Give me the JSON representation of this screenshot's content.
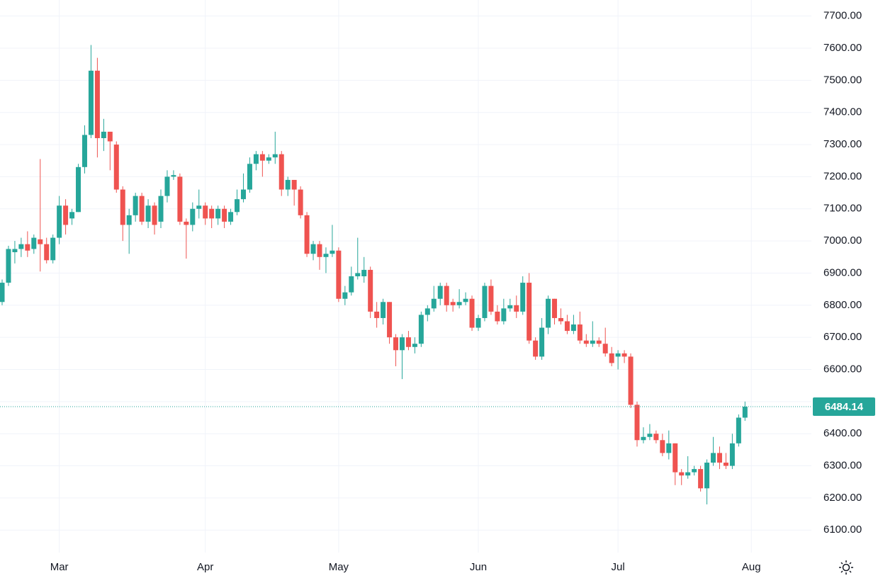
{
  "chart_data": {
    "type": "candlestick",
    "up_color": "#26a69a",
    "down_color": "#ef5350",
    "grid": true,
    "ylim": [
      6030,
      7750
    ],
    "yticks": [
      {
        "value": 6100,
        "label": "6100.00"
      },
      {
        "value": 6200,
        "label": "6200.00"
      },
      {
        "value": 6300,
        "label": "6300.00"
      },
      {
        "value": 6400,
        "label": "6400.00"
      },
      {
        "value": 6500,
        "label": "6500.00"
      },
      {
        "value": 6600,
        "label": "6600.00"
      },
      {
        "value": 6700,
        "label": "6700.00"
      },
      {
        "value": 6800,
        "label": "6800.00"
      },
      {
        "value": 6900,
        "label": "6900.00"
      },
      {
        "value": 7000,
        "label": "7000.00"
      },
      {
        "value": 7100,
        "label": "7100.00"
      },
      {
        "value": 7200,
        "label": "7200.00"
      },
      {
        "value": 7300,
        "label": "7300.00"
      },
      {
        "value": 7400,
        "label": "7400.00"
      },
      {
        "value": 7500,
        "label": "7500.00"
      },
      {
        "value": 7600,
        "label": "7600.00"
      },
      {
        "value": 7700,
        "label": "7700.00"
      }
    ],
    "xticks": [
      {
        "value": 9,
        "label": "Mar"
      },
      {
        "value": 32,
        "label": "Apr"
      },
      {
        "value": 53,
        "label": "May"
      },
      {
        "value": 75,
        "label": "Jun"
      },
      {
        "value": 97,
        "label": "Jul"
      },
      {
        "value": 118,
        "label": "Aug"
      }
    ],
    "open": [
      6810,
      6870,
      6965,
      6975,
      6990,
      6975,
      7005,
      6990,
      6940,
      7010,
      7110,
      7070,
      7090,
      7230,
      7330,
      7530,
      7320,
      7340,
      7300,
      7160,
      7050,
      7080,
      7140,
      7060,
      7110,
      7060,
      7140,
      7200,
      7200,
      7060,
      7050,
      7100,
      7110,
      7100,
      7070,
      7100,
      7060,
      7090,
      7130,
      7160,
      7240,
      7270,
      7250,
      7260,
      7270,
      7160,
      7190,
      7160,
      7080,
      6960,
      6990,
      6950,
      6960,
      6970,
      6820,
      6840,
      6890,
      6890,
      6910,
      6780,
      6760,
      6810,
      6700,
      6660,
      6700,
      6670,
      6680,
      6770,
      6790,
      6820,
      6860,
      6810,
      6800,
      6810,
      6820,
      6730,
      6760,
      6860,
      6780,
      6750,
      6790,
      6800,
      6780,
      6870,
      6690,
      6640,
      6730,
      6820,
      6760,
      6750,
      6720,
      6740,
      6690,
      6680,
      6690,
      6680,
      6650,
      6640,
      6650,
      6640,
      6490,
      6380,
      6390,
      6400,
      6380,
      6340,
      6370,
      6280,
      6270,
      6280,
      6290,
      6230,
      6310,
      6340,
      6310,
      6300,
      6370,
      6450
    ],
    "high": [
      6880,
      6985,
      7000,
      7010,
      7030,
      7020,
      7255,
      7010,
      7020,
      7140,
      7130,
      7100,
      7240,
      7360,
      7610,
      7570,
      7380,
      7340,
      7310,
      7170,
      7100,
      7150,
      7150,
      7130,
      7120,
      7160,
      7220,
      7220,
      7210,
      7070,
      7120,
      7160,
      7120,
      7110,
      7110,
      7110,
      7100,
      7160,
      7210,
      7260,
      7280,
      7280,
      7270,
      7340,
      7280,
      7200,
      7190,
      7170,
      7090,
      7000,
      7000,
      6980,
      7050,
      6980,
      6860,
      6920,
      7010,
      6950,
      6920,
      6810,
      6820,
      6810,
      6710,
      6710,
      6720,
      6700,
      6780,
      6800,
      6860,
      6870,
      6870,
      6820,
      6850,
      6840,
      6830,
      6770,
      6870,
      6880,
      6800,
      6820,
      6820,
      6830,
      6890,
      6900,
      6700,
      6760,
      6830,
      6820,
      6790,
      6770,
      6770,
      6780,
      6710,
      6750,
      6700,
      6730,
      6670,
      6660,
      6660,
      6650,
      6500,
      6420,
      6430,
      6410,
      6400,
      6410,
      6370,
      6290,
      6330,
      6300,
      6300,
      6320,
      6390,
      6360,
      6340,
      6400,
      6460,
      6500
    ],
    "low": [
      6800,
      6860,
      6930,
      6950,
      6950,
      6960,
      6905,
      6930,
      6930,
      6990,
      7020,
      7050,
      7090,
      7210,
      7320,
      7260,
      7280,
      7220,
      7150,
      7000,
      6960,
      7060,
      7050,
      7040,
      7020,
      7040,
      7120,
      7190,
      7050,
      6945,
      7030,
      7070,
      7050,
      7040,
      7050,
      7040,
      7050,
      7080,
      7120,
      7150,
      7220,
      7200,
      7240,
      7240,
      7140,
      7140,
      7110,
      7070,
      6950,
      6940,
      6910,
      6900,
      6950,
      6810,
      6800,
      6830,
      6880,
      6870,
      6760,
      6730,
      6740,
      6680,
      6610,
      6570,
      6660,
      6650,
      6670,
      6750,
      6780,
      6800,
      6780,
      6780,
      6790,
      6800,
      6720,
      6720,
      6750,
      6770,
      6740,
      6740,
      6780,
      6760,
      6770,
      6680,
      6630,
      6630,
      6710,
      6740,
      6740,
      6710,
      6710,
      6680,
      6670,
      6670,
      6670,
      6640,
      6610,
      6600,
      6620,
      6480,
      6360,
      6370,
      6380,
      6370,
      6330,
      6320,
      6240,
      6240,
      6260,
      6270,
      6220,
      6180,
      6300,
      6290,
      6290,
      6290,
      6360,
      6440
    ],
    "close": [
      6870,
      6975,
      6975,
      6990,
      6970,
      7010,
      6990,
      6940,
      7010,
      7110,
      7050,
      7090,
      7230,
      7330,
      7530,
      7320,
      7340,
      7310,
      7160,
      7050,
      7080,
      7140,
      7060,
      7110,
      7050,
      7140,
      7200,
      7205,
      7060,
      7050,
      7100,
      7110,
      7070,
      7070,
      7100,
      7060,
      7090,
      7130,
      7160,
      7240,
      7270,
      7250,
      7260,
      7270,
      7160,
      7190,
      7160,
      7080,
      6960,
      6990,
      6950,
      6960,
      6970,
      6820,
      6840,
      6890,
      6900,
      6910,
      6780,
      6760,
      6810,
      6700,
      6660,
      6700,
      6670,
      6680,
      6770,
      6790,
      6820,
      6860,
      6800,
      6800,
      6810,
      6820,
      6730,
      6760,
      6860,
      6780,
      6750,
      6790,
      6800,
      6780,
      6870,
      6690,
      6640,
      6730,
      6820,
      6760,
      6750,
      6720,
      6740,
      6690,
      6680,
      6690,
      6680,
      6650,
      6620,
      6650,
      6640,
      6490,
      6380,
      6390,
      6400,
      6380,
      6340,
      6370,
      6280,
      6270,
      6280,
      6290,
      6230,
      6310,
      6340,
      6310,
      6300,
      6370,
      6450,
      6484.14
    ]
  }
}
